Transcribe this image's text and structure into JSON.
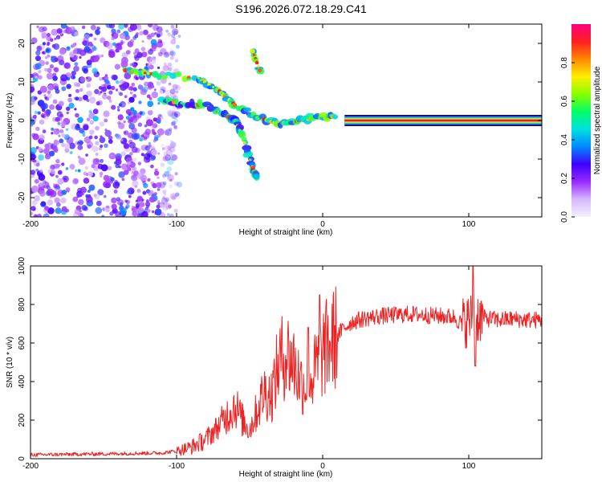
{
  "title": "S196.2026.072.18.29.C41",
  "colors": {
    "snr_line": "#ee2222",
    "frame": "#000000",
    "colorbar": [
      "#f5f0ff",
      "#d6b8ff",
      "#9b2bff",
      "#3e00ff",
      "#0088ff",
      "#00e0e0",
      "#00ff66",
      "#88ff00",
      "#ffee00",
      "#ff8800",
      "#ff2020",
      "#ff0080"
    ]
  },
  "chart_data": [
    {
      "type": "heatmap",
      "name": "spectrogram",
      "xlabel": "Height of straight line (km)",
      "ylabel": "Frequency (Hz)",
      "xlim": [
        -200,
        150
      ],
      "ylim": [
        -25,
        25
      ],
      "xticks": [
        "-200",
        "-100",
        "0",
        "100"
      ],
      "xtick_values": [
        -200,
        -100,
        0,
        100
      ],
      "yticks": [
        "20",
        "10",
        "0",
        "-10",
        "-20"
      ],
      "ytick_values": [
        20,
        10,
        0,
        -10,
        -20
      ],
      "colorbar": {
        "label": "Normalized spectral amplitude",
        "range": [
          0,
          1
        ],
        "ticks": [
          "0.0",
          "0.2",
          "0.4",
          "0.6",
          "0.8"
        ],
        "tick_values": [
          0.0,
          0.2,
          0.4,
          0.6,
          0.8
        ]
      },
      "features": [
        {
          "name": "carrier_line",
          "x_start": 15,
          "x_end": 150,
          "frequency": 0,
          "amplitude": 1.0
        },
        {
          "name": "upper_branch",
          "points": [
            [
              -135,
              13
            ],
            [
              -115,
              12
            ],
            [
              -85,
              11
            ],
            [
              -72,
              8
            ],
            [
              -60,
              4
            ],
            [
              -45,
              1
            ],
            [
              -30,
              -1
            ],
            [
              -15,
              0
            ],
            [
              0,
              1
            ],
            [
              10,
              1
            ]
          ]
        },
        {
          "name": "lower_branch",
          "points": [
            [
              -110,
              5
            ],
            [
              -95,
              4.5
            ],
            [
              -80,
              4
            ],
            [
              -70,
              2
            ],
            [
              -60,
              0
            ],
            [
              -55,
              -4
            ],
            [
              -48,
              -12
            ],
            [
              -45,
              -15
            ]
          ]
        },
        {
          "name": "noise_region",
          "x_start": -200,
          "x_end": -110,
          "amplitude_range": [
            0.1,
            0.3
          ]
        }
      ]
    },
    {
      "type": "line",
      "name": "snr",
      "xlabel": "Height of straight line (km)",
      "ylabel": "SNR (10 * v/v)",
      "xlim": [
        -200,
        150
      ],
      "ylim": [
        0,
        1000
      ],
      "xticks": [
        "-200",
        "-100",
        "0",
        "100"
      ],
      "xtick_values": [
        -200,
        -100,
        0,
        100
      ],
      "yticks": [
        "0",
        "200",
        "400",
        "600",
        "800",
        "1000"
      ],
      "ytick_values": [
        0,
        200,
        400,
        600,
        800,
        1000
      ],
      "series": [
        {
          "name": "SNR",
          "x": [
            -200,
            -150,
            -110,
            -100,
            -90,
            -80,
            -70,
            -60,
            -55,
            -50,
            -45,
            -40,
            -35,
            -30,
            -25,
            -20,
            -15,
            -10,
            -5,
            0,
            5,
            10,
            15,
            20,
            30,
            40,
            50,
            60,
            70,
            80,
            90,
            95,
            100,
            105,
            110,
            120,
            130,
            140,
            150
          ],
          "values": [
            20,
            25,
            30,
            40,
            60,
            100,
            180,
            280,
            200,
            150,
            250,
            350,
            330,
            500,
            550,
            500,
            400,
            380,
            460,
            550,
            600,
            640,
            680,
            710,
            730,
            740,
            745,
            750,
            745,
            740,
            735,
            700,
            720,
            740,
            730,
            720,
            725,
            720,
            720
          ]
        }
      ],
      "annotations": [
        {
          "x": -10,
          "peak": 680
        },
        {
          "x": -2,
          "peak": 850
        },
        {
          "x": 103,
          "peak": 1000,
          "trough": 480
        }
      ]
    }
  ]
}
